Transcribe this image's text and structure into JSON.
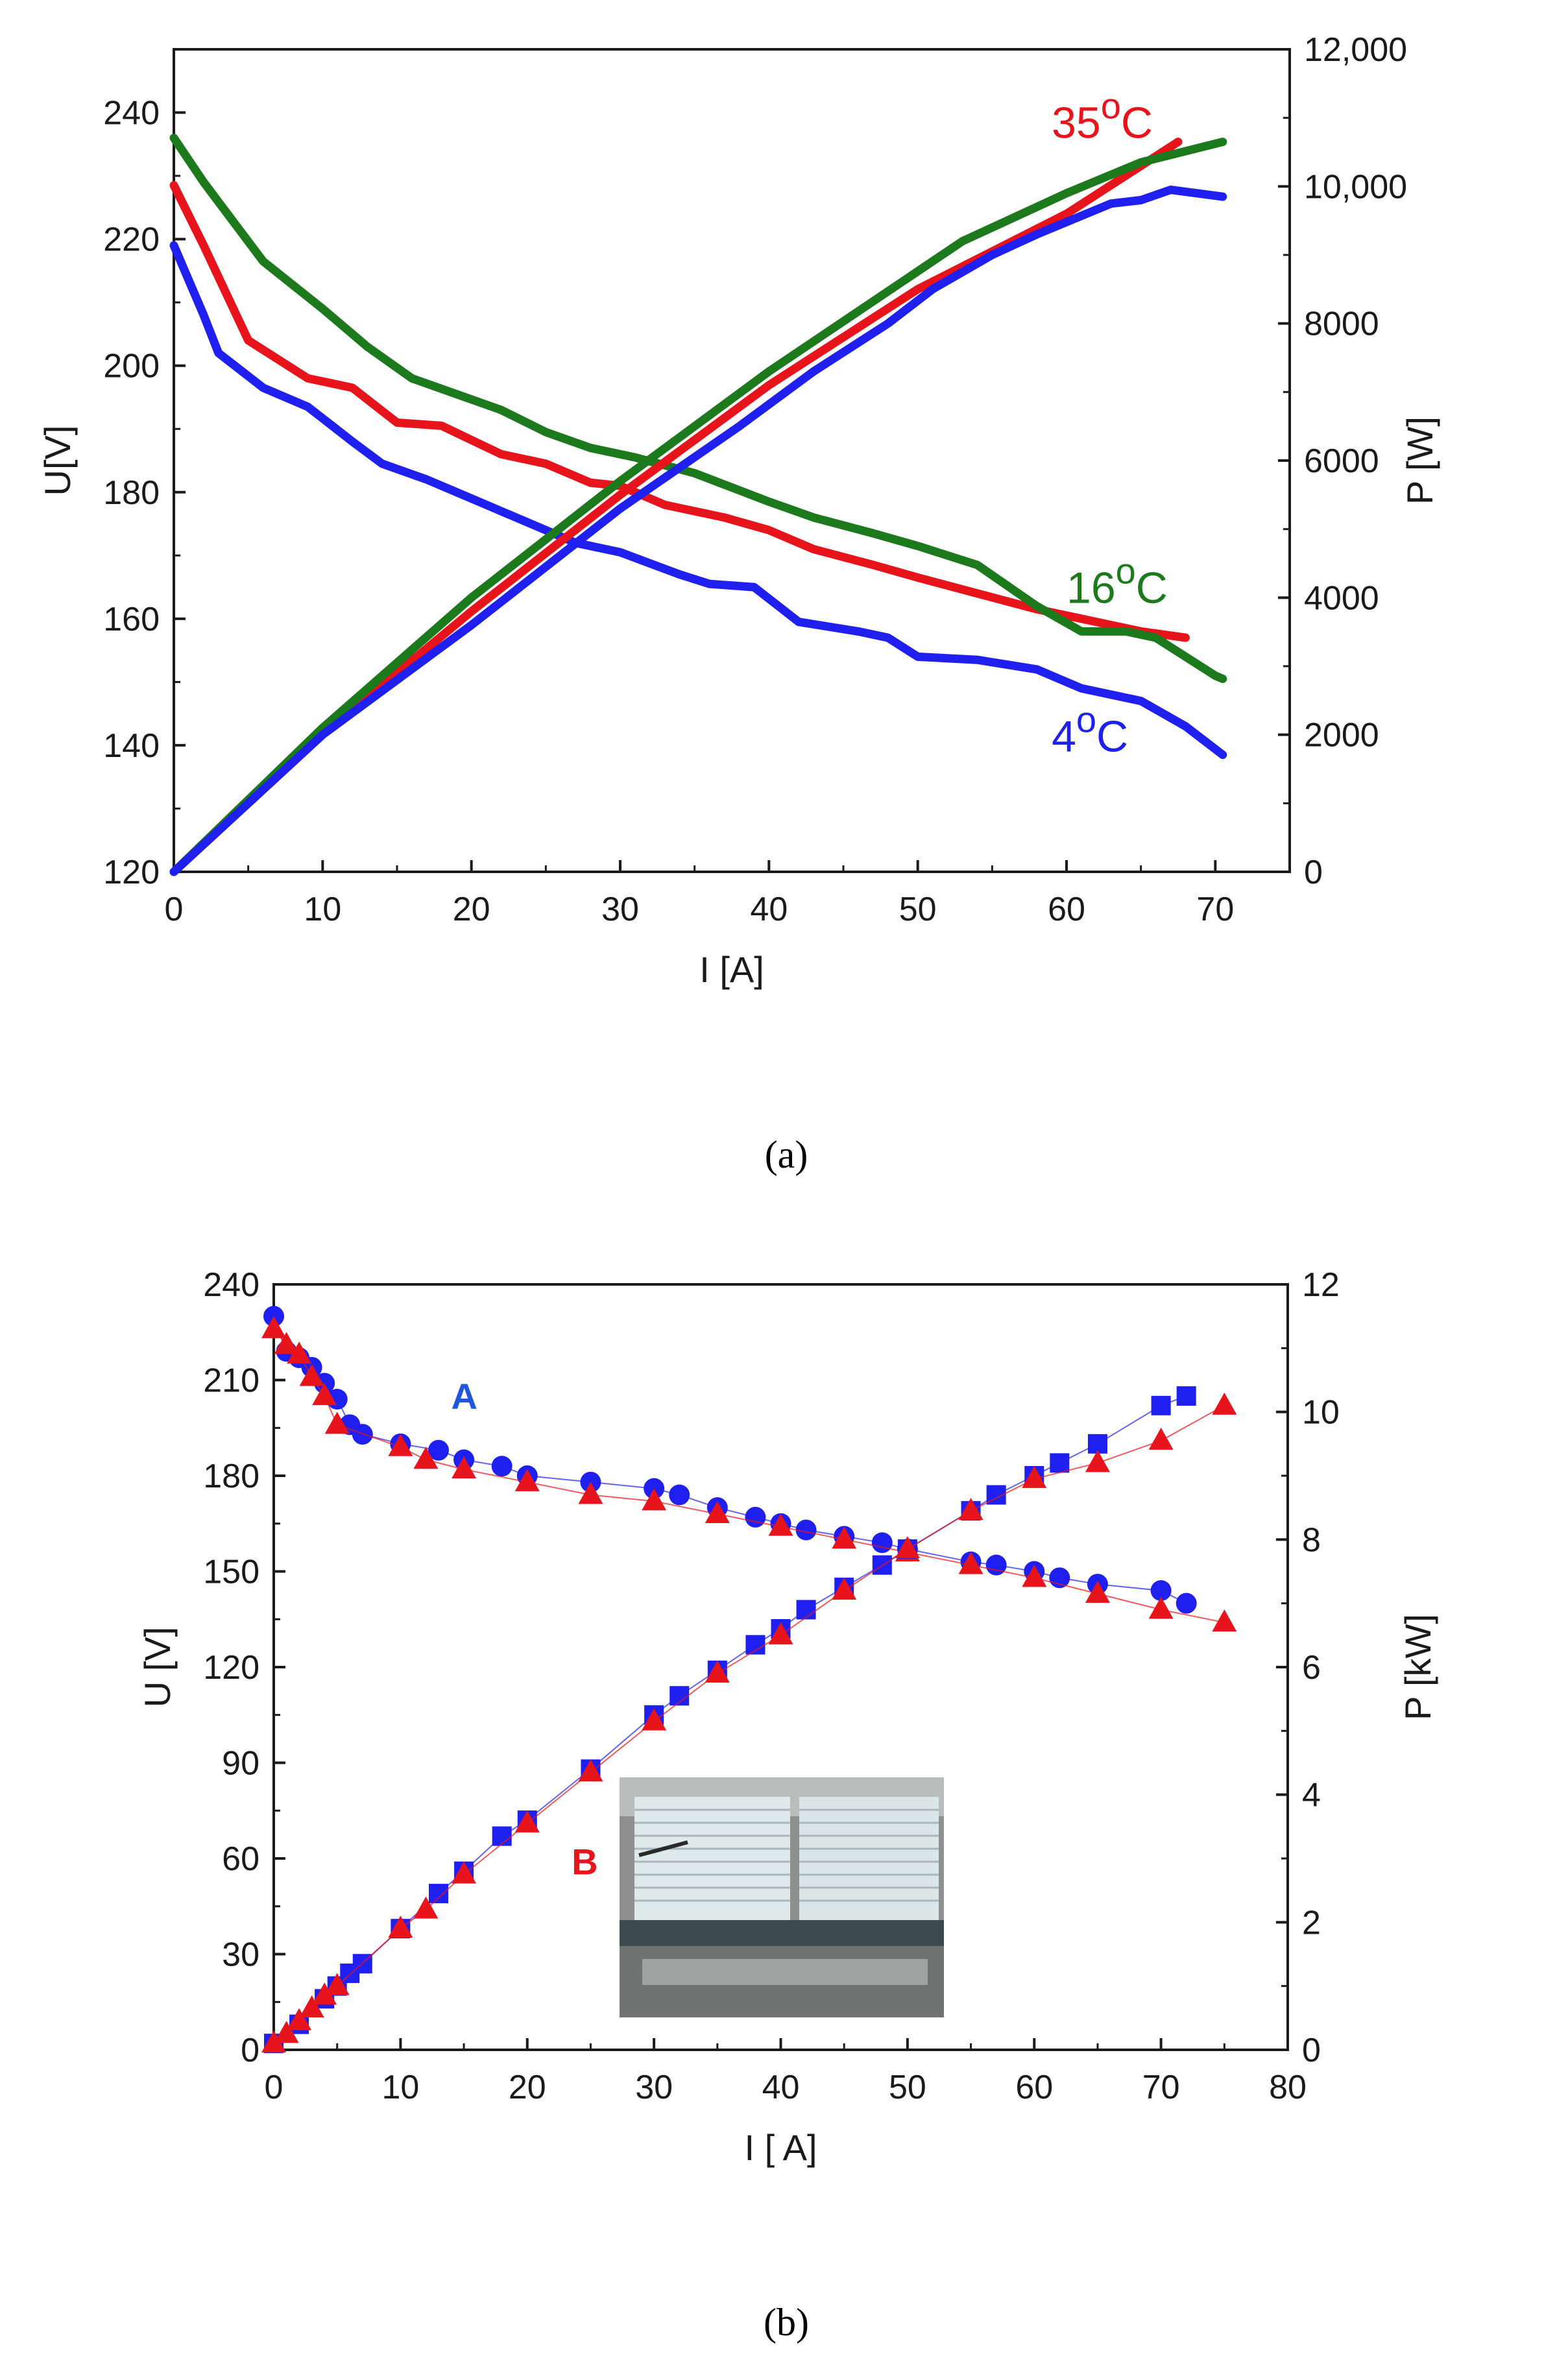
{
  "chart_data": [
    {
      "type": "line",
      "sublabel": "(a)",
      "panel": "a",
      "xlabel": "I [A]",
      "ylabel_left": "U[V]",
      "ylabel_right": "P [W]",
      "xlim": [
        0,
        75
      ],
      "ylim_left": [
        120,
        250
      ],
      "ylim_right": [
        0,
        12000
      ],
      "x_ticks": [
        "0",
        "10",
        "20",
        "30",
        "40",
        "50",
        "60",
        "70"
      ],
      "y_left_ticks": [
        "120",
        "140",
        "160",
        "180",
        "200",
        "220",
        "240"
      ],
      "y_right_ticks": [
        "0",
        "2000",
        "4000",
        "6000",
        "8000",
        "10,000",
        "12,000"
      ],
      "legend": [
        {
          "label": "35",
          "sup": "o",
          "unit": "C",
          "color": "#e8141b"
        },
        {
          "label": "16",
          "sup": "o",
          "unit": "C",
          "color": "#1c7a1c"
        },
        {
          "label": "4",
          "sup": "o",
          "unit": "C",
          "color": "#1f1ff0"
        }
      ],
      "series": [
        {
          "name": "U 35°C",
          "axis": "left",
          "color": "#e8141b",
          "x": [
            0,
            2,
            5,
            9,
            12,
            15,
            18,
            22,
            25,
            28,
            30,
            33,
            37,
            40,
            43,
            47,
            50,
            54,
            58,
            62,
            65,
            68
          ],
          "y": [
            228.5,
            219,
            204,
            198,
            196.5,
            191,
            190.5,
            186,
            184.5,
            181.5,
            181,
            178,
            176,
            174,
            171,
            168.5,
            166.5,
            164,
            161.5,
            159.5,
            158,
            157
          ]
        },
        {
          "name": "U 16°C",
          "axis": "left",
          "color": "#1c7a1c",
          "x": [
            0,
            2,
            6,
            10,
            13,
            16,
            19,
            22,
            25,
            28,
            31,
            35,
            40,
            43,
            47,
            50,
            54,
            58,
            61,
            64,
            66,
            70,
            70.5
          ],
          "y": [
            236,
            229,
            216.5,
            209,
            203,
            198,
            195.5,
            193,
            189.5,
            187,
            185.5,
            183,
            178.5,
            176,
            173.5,
            171.5,
            168.5,
            162,
            158,
            158,
            157,
            151,
            150.5
          ]
        },
        {
          "name": "U 4°C",
          "axis": "left",
          "color": "#1f1ff0",
          "x": [
            0,
            2,
            3,
            6,
            9,
            12,
            14,
            17,
            20,
            24,
            27,
            30,
            34,
            36,
            39,
            42,
            46,
            48,
            50,
            54,
            58,
            61,
            65,
            68,
            70.5
          ],
          "y": [
            219,
            208,
            202,
            196.5,
            193.5,
            188,
            184.5,
            182,
            179,
            175,
            172,
            170.5,
            167,
            165.5,
            165,
            159.5,
            158,
            157,
            154,
            153.5,
            152,
            149,
            147,
            143,
            138.5
          ]
        },
        {
          "name": "P 35°C",
          "axis": "right",
          "color": "#e8141b",
          "x": [
            0,
            10,
            20,
            30,
            40,
            50,
            60,
            67.5
          ],
          "y": [
            0,
            2000,
            3800,
            5500,
            7100,
            8500,
            9600,
            10650
          ]
        },
        {
          "name": "P 16°C",
          "axis": "right",
          "color": "#1c7a1c",
          "x": [
            0,
            10,
            20,
            30,
            40,
            53,
            60,
            65,
            70.5
          ],
          "y": [
            0,
            2100,
            4000,
            5700,
            7300,
            9200,
            9900,
            10350,
            10650
          ]
        },
        {
          "name": "P 4°C",
          "axis": "right",
          "color": "#1f1ff0",
          "x": [
            0,
            10,
            20,
            30,
            38,
            43,
            48,
            51,
            55,
            58,
            63,
            65,
            67,
            70.5
          ],
          "y": [
            0,
            2000,
            3600,
            5300,
            6500,
            7300,
            8000,
            8500,
            9000,
            9300,
            9750,
            9800,
            9950,
            9850
          ]
        }
      ]
    },
    {
      "type": "scatter",
      "sublabel": "(b)",
      "panel": "b",
      "xlabel": "I [ A]",
      "ylabel_left": "U [V]",
      "ylabel_right": "P [kW]",
      "xlim": [
        0,
        80
      ],
      "ylim_left": [
        0,
        240
      ],
      "ylim_right": [
        0,
        12
      ],
      "x_ticks": [
        "0",
        "10",
        "20",
        "30",
        "40",
        "50",
        "60",
        "70",
        "80"
      ],
      "y_left_ticks": [
        "0",
        "30",
        "60",
        "90",
        "120",
        "150",
        "180",
        "210",
        "240"
      ],
      "y_right_ticks": [
        "0",
        "2",
        "4",
        "6",
        "8",
        "10",
        "12"
      ],
      "annotations": [
        {
          "text": "A",
          "color": "#1f56e0"
        },
        {
          "text": "B",
          "color": "#e8141b"
        }
      ],
      "series": [
        {
          "name": "A – U",
          "axis": "left",
          "marker": "circle",
          "color": "#1f1ff0",
          "x": [
            0,
            1,
            2,
            3,
            4,
            5,
            6,
            7,
            10,
            13,
            15,
            18,
            20,
            25,
            30,
            32,
            35,
            38,
            40,
            42,
            45,
            48,
            50,
            55,
            57,
            60,
            62,
            65,
            70,
            72
          ],
          "y": [
            230,
            219,
            217,
            214,
            209,
            204,
            196,
            193,
            190,
            188,
            185,
            183,
            180,
            178,
            176,
            174,
            170,
            167,
            165,
            163,
            161,
            159,
            157,
            153,
            152,
            150,
            148,
            146,
            144,
            140
          ]
        },
        {
          "name": "B – U",
          "axis": "left",
          "marker": "triangle",
          "color": "#e8141b",
          "x": [
            0,
            1,
            2,
            3,
            4,
            5,
            10,
            12,
            15,
            20,
            25,
            30,
            35,
            40,
            45,
            50,
            55,
            60,
            65,
            70,
            75
          ],
          "y": [
            226,
            221,
            218,
            211,
            205,
            196,
            189,
            185,
            182,
            178,
            174,
            172,
            168,
            164,
            160,
            156,
            152,
            148,
            143,
            138,
            134
          ]
        },
        {
          "name": "A – P",
          "axis": "right",
          "marker": "square",
          "color": "#1f1ff0",
          "x": [
            0,
            2,
            4,
            5,
            6,
            7,
            10,
            13,
            15,
            18,
            20,
            25,
            30,
            32,
            35,
            38,
            40,
            42,
            45,
            48,
            50,
            55,
            57,
            60,
            62,
            65,
            70,
            72
          ],
          "y": [
            0.1,
            0.4,
            0.8,
            1.0,
            1.2,
            1.35,
            1.9,
            2.45,
            2.8,
            3.35,
            3.6,
            4.4,
            5.25,
            5.55,
            5.95,
            6.35,
            6.6,
            6.9,
            7.25,
            7.6,
            7.85,
            8.45,
            8.7,
            9.0,
            9.2,
            9.5,
            10.1,
            10.25
          ]
        },
        {
          "name": "B – P",
          "axis": "right",
          "marker": "triangle",
          "color": "#e8141b",
          "x": [
            0,
            1,
            2,
            3,
            4,
            5,
            10,
            12,
            15,
            20,
            25,
            30,
            35,
            40,
            45,
            50,
            55,
            60,
            65,
            70,
            75
          ],
          "y": [
            0.1,
            0.25,
            0.45,
            0.65,
            0.85,
            1.0,
            1.9,
            2.2,
            2.75,
            3.55,
            4.35,
            5.15,
            5.9,
            6.5,
            7.2,
            7.85,
            8.45,
            8.95,
            9.2,
            9.55,
            10.1
          ]
        }
      ]
    }
  ]
}
